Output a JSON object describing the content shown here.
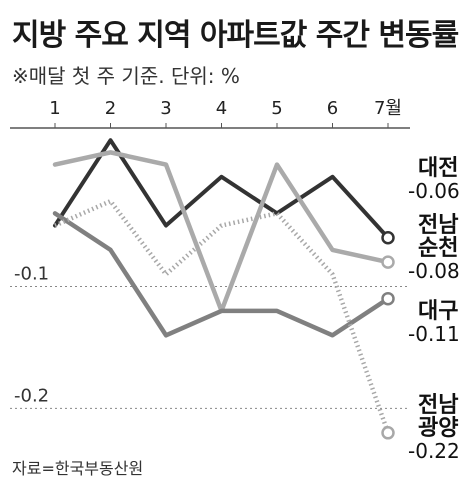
{
  "header": {
    "title": "지방 주요 지역 아파트값 주간 변동률",
    "subtitle": "※매달 첫 주 기준. 단위: %",
    "source": "자료=한국부동산원"
  },
  "chart_data": {
    "type": "line",
    "title": "지방 주요 지역 아파트값 주간 변동률",
    "categories": [
      "1",
      "2",
      "3",
      "4",
      "5",
      "6",
      "7월"
    ],
    "yticks": [
      {
        "value": -0.1,
        "label": "-0.1"
      },
      {
        "value": -0.2,
        "label": "-0.2"
      }
    ],
    "ylim": [
      -0.23,
      0.03
    ],
    "grid": "dotted horizontal at -0.1 and -0.2",
    "series": [
      {
        "name": "대전",
        "name_lines": [
          "대전"
        ],
        "final_label": "-0.06",
        "color": "#333333",
        "style": "solid",
        "values": [
          -0.05,
          0.02,
          -0.05,
          -0.01,
          -0.04,
          -0.01,
          -0.06
        ]
      },
      {
        "name": "전남 순천",
        "name_lines": [
          "전남",
          "순천"
        ],
        "final_label": "-0.08",
        "color": "#aaaaaa",
        "style": "solid",
        "values": [
          0.0,
          0.01,
          0.0,
          -0.12,
          0.0,
          -0.07,
          -0.08
        ]
      },
      {
        "name": "대구",
        "name_lines": [
          "대구"
        ],
        "final_label": "-0.11",
        "color": "#808080",
        "style": "solid",
        "values": [
          -0.04,
          -0.07,
          -0.14,
          -0.12,
          -0.12,
          -0.14,
          -0.11
        ]
      },
      {
        "name": "전남 광양",
        "name_lines": [
          "전남",
          "광양"
        ],
        "final_label": "-0.22",
        "color": "#a8a8a8",
        "style": "dotted",
        "values": [
          -0.05,
          -0.03,
          -0.09,
          -0.05,
          -0.04,
          -0.09,
          -0.22
        ]
      }
    ]
  }
}
